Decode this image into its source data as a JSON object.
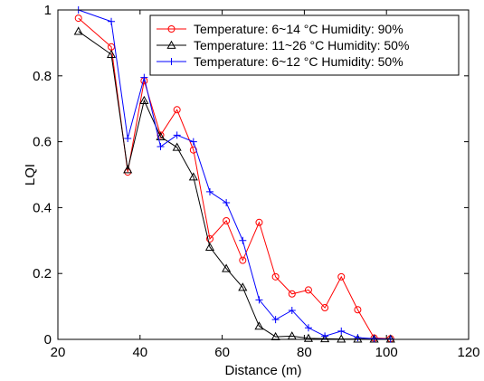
{
  "chart_data": {
    "type": "line",
    "xlabel": "Distance (m)",
    "ylabel": "LQI",
    "xlim": [
      20,
      120
    ],
    "ylim": [
      0,
      1
    ],
    "xticks": [
      20,
      40,
      60,
      80,
      100,
      120
    ],
    "yticks": [
      0,
      0.2,
      0.4,
      0.6,
      0.8,
      1
    ],
    "xtick_labels": [
      "20",
      "40",
      "60",
      "80",
      "100",
      "120"
    ],
    "ytick_labels": [
      "0",
      "0.2",
      "0.4",
      "0.6",
      "0.8",
      "1"
    ],
    "grid": false,
    "legend_position": "top-right",
    "series": [
      {
        "name": "Temperature:   6~14 °C Humidity: 90%",
        "color": "#ff0000",
        "marker": "circle",
        "x": [
          25,
          33,
          37,
          41,
          45,
          49,
          53,
          57,
          61,
          65,
          69,
          73,
          77,
          81,
          85,
          89,
          93,
          97,
          101
        ],
        "y": [
          0.975,
          0.888,
          0.508,
          0.785,
          0.62,
          0.697,
          0.575,
          0.305,
          0.36,
          0.24,
          0.355,
          0.19,
          0.138,
          0.15,
          0.096,
          0.19,
          0.09,
          0.004,
          0.002
        ]
      },
      {
        "name": "Temperature: 11~26 °C Humidity: 50%",
        "color": "#000000",
        "marker": "triangle",
        "x": [
          25,
          33,
          37,
          41,
          45,
          49,
          53,
          57,
          61,
          65,
          69,
          73,
          77,
          81,
          85,
          89,
          93,
          97,
          101
        ],
        "y": [
          0.935,
          0.865,
          0.515,
          0.725,
          0.615,
          0.583,
          0.493,
          0.28,
          0.215,
          0.158,
          0.04,
          0.008,
          0.01,
          0.003,
          0.002,
          0.001,
          0.001,
          0.001,
          0.001
        ]
      },
      {
        "name": "Temperature:   6~12 °C Humidity: 50%",
        "color": "#0000ff",
        "marker": "plus",
        "x": [
          25,
          33,
          37,
          41,
          45,
          49,
          53,
          57,
          61,
          65,
          69,
          73,
          77,
          81,
          85,
          89,
          93,
          97,
          101
        ],
        "y": [
          1.0,
          0.965,
          0.61,
          0.795,
          0.585,
          0.62,
          0.6,
          0.448,
          0.415,
          0.3,
          0.12,
          0.06,
          0.088,
          0.035,
          0.01,
          0.025,
          0.005,
          0.002,
          0.001
        ]
      }
    ]
  }
}
